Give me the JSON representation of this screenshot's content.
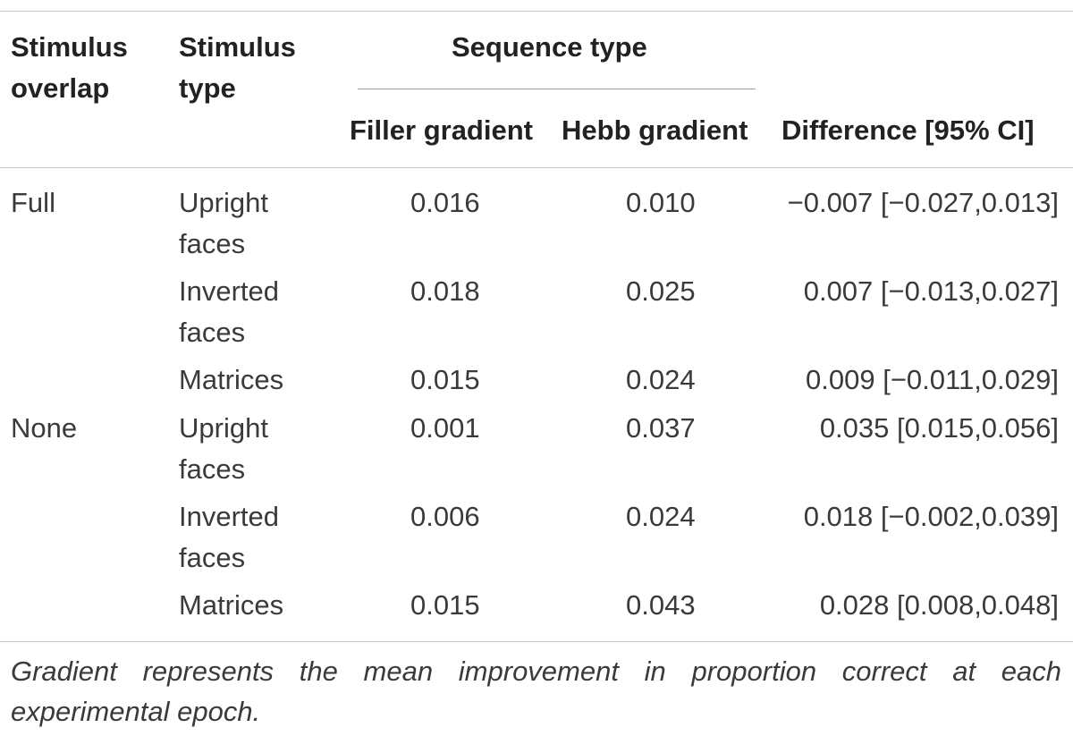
{
  "headers": {
    "stimulus_overlap": "Stimulus overlap",
    "stimulus_type": "Stimulus type",
    "sequence_type": "Sequence type",
    "filler_gradient": "Filler gradient",
    "hebb_gradient": "Hebb gradient",
    "difference": "Difference [95% CI]"
  },
  "rows": [
    {
      "overlap": "Full",
      "type": "Upright faces",
      "filler": "0.016",
      "hebb": "0.010",
      "difference": "−0.007 [−0.027,0.013]"
    },
    {
      "overlap": "",
      "type": "Inverted faces",
      "filler": "0.018",
      "hebb": "0.025",
      "difference": "0.007 [−0.013,0.027]"
    },
    {
      "overlap": "",
      "type": "Matrices",
      "filler": "0.015",
      "hebb": "0.024",
      "difference": "0.009 [−0.011,0.029]"
    },
    {
      "overlap": "None",
      "type": "Upright faces",
      "filler": "0.001",
      "hebb": "0.037",
      "difference": "0.035 [0.015,0.056]"
    },
    {
      "overlap": "",
      "type": "Inverted faces",
      "filler": "0.006",
      "hebb": "0.024",
      "difference": "0.018 [−0.002,0.039]"
    },
    {
      "overlap": "",
      "type": "Matrices",
      "filler": "0.015",
      "hebb": "0.043",
      "difference": "0.028 [0.008,0.048]"
    }
  ],
  "footnote": "Gradient represents the mean improvement in proportion correct at each experimental epoch."
}
